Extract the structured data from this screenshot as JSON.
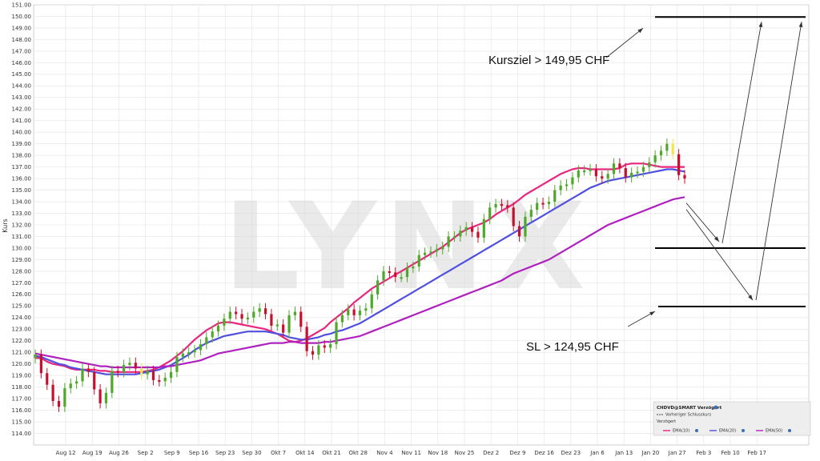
{
  "chart_data": {
    "type": "candlestick",
    "ylabel": "Kurs",
    "ylim": [
      113.0,
      151.0
    ],
    "yticks": [
      "114.00",
      "115.00",
      "116.00",
      "117.00",
      "118.00",
      "119.00",
      "120.00",
      "121.00",
      "122.00",
      "123.00",
      "124.00",
      "125.00",
      "126.00",
      "127.00",
      "128.00",
      "129.00",
      "130.00",
      "131.00",
      "132.00",
      "133.00",
      "134.00",
      "135.00",
      "136.00",
      "137.00",
      "138.00",
      "139.00",
      "140.00",
      "141.00",
      "142.00",
      "143.00",
      "144.00",
      "145.00",
      "146.00",
      "147.00",
      "148.00",
      "149.00",
      "150.00",
      "151.00"
    ],
    "xticks": [
      "Aug 12",
      "Aug 19",
      "Aug 26",
      "Sep 2",
      "Sep 9",
      "Sep 16",
      "Sep 23",
      "Sep 30",
      "Okt 7",
      "Okt 14",
      "Okt 21",
      "Okt 28",
      "Nov 4",
      "Nov 11",
      "Nov 18",
      "Nov 25",
      "Dez 2",
      "Dez 9",
      "Dez 16",
      "Dez 23",
      "Jan 6",
      "Jan 13",
      "Jan 20",
      "Jan 27",
      "Feb 3",
      "Feb 10",
      "Feb 17"
    ],
    "watermark": "LYNX",
    "closes": [
      120.8,
      119.2,
      118.2,
      116.8,
      116.3,
      117.9,
      118.3,
      118.5,
      119.6,
      119.3,
      117.8,
      116.6,
      117.5,
      119.4,
      119.3,
      119.9,
      120.1,
      119.6,
      119.1,
      119.4,
      118.6,
      118.5,
      118.8,
      119.3,
      120.6,
      120.9,
      121.0,
      121.2,
      121.7,
      122.3,
      122.8,
      123.3,
      123.9,
      124.5,
      124.3,
      123.9,
      124.0,
      124.5,
      124.8,
      124.3,
      123.3,
      123.4,
      122.7,
      124.2,
      124.5,
      123.2,
      121.1,
      120.8,
      121.6,
      121.4,
      121.7,
      123.6,
      124.2,
      124.7,
      124.2,
      124.6,
      124.8,
      126.0,
      127.2,
      128.0,
      127.9,
      127.5,
      127.5,
      128.3,
      128.4,
      129.4,
      129.6,
      129.7,
      129.9,
      130.1,
      131.0,
      131.0,
      131.5,
      131.8,
      131.4,
      130.9,
      132.5,
      133.5,
      133.8,
      133.7,
      133.5,
      131.9,
      131.0,
      132.7,
      133.3,
      133.9,
      133.8,
      134.0,
      135.0,
      135.4,
      135.5,
      136.1,
      136.7,
      136.7,
      136.8,
      136.2,
      136.0,
      136.4,
      137.3,
      136.9,
      136.1,
      136.5,
      136.6,
      137.0,
      137.4,
      138.0,
      138.4,
      139.0,
      138.1,
      136.3,
      136.0
    ],
    "series": [
      {
        "name": "EMA(10)",
        "color": "#e8267f",
        "values": [
          120.5,
          120.5,
          120.2,
          120.0,
          119.9,
          119.8,
          119.6,
          119.5,
          119.5,
          119.5,
          119.5,
          119.4,
          119.4,
          119.3,
          119.3,
          119.3,
          119.3,
          119.3,
          119.3,
          119.4,
          119.5,
          119.7,
          120.0,
          120.3,
          120.7,
          121.1,
          121.6,
          122.1,
          122.5,
          122.9,
          123.2,
          123.5,
          123.6,
          123.6,
          123.5,
          123.4,
          123.3,
          123.2,
          123.1,
          123.0,
          122.8,
          122.6,
          122.3,
          122.0,
          121.9,
          122.0,
          122.2,
          122.5,
          122.8,
          123.1,
          123.6,
          124.0,
          124.4,
          124.8,
          125.3,
          125.7,
          126.1,
          126.5,
          126.8,
          127.1,
          127.4,
          127.7,
          128.0,
          128.3,
          128.6,
          128.9,
          129.2,
          129.5,
          129.8,
          130.1,
          130.5,
          130.9,
          131.3,
          131.6,
          131.8,
          132.0,
          132.2,
          132.5,
          132.9,
          133.2,
          133.5,
          133.8,
          134.2,
          134.6,
          134.9,
          135.2,
          135.5,
          135.8,
          136.1,
          136.4,
          136.6,
          136.8,
          136.9,
          136.9,
          136.8,
          136.8,
          136.8,
          136.8,
          136.8,
          136.9,
          137.2,
          137.3,
          137.3,
          137.3,
          137.2,
          137.1,
          137.0,
          137.0,
          137.0,
          137.0,
          137.0
        ]
      },
      {
        "name": "EMA(20)",
        "color": "#5050e0",
        "values": [
          120.7,
          120.6,
          120.4,
          120.2,
          120.0,
          119.9,
          119.7,
          119.6,
          119.5,
          119.4,
          119.3,
          119.2,
          119.1,
          119.1,
          119.1,
          119.1,
          119.1,
          119.1,
          119.2,
          119.3,
          119.4,
          119.5,
          119.7,
          119.9,
          120.2,
          120.5,
          120.8,
          121.2,
          121.5,
          121.8,
          122.0,
          122.2,
          122.4,
          122.5,
          122.6,
          122.7,
          122.8,
          122.8,
          122.8,
          122.8,
          122.7,
          122.6,
          122.5,
          122.3,
          122.2,
          122.1,
          122.1,
          122.2,
          122.3,
          122.5,
          122.6,
          122.8,
          122.9,
          123.1,
          123.3,
          123.5,
          123.8,
          124.1,
          124.4,
          124.7,
          125.0,
          125.3,
          125.6,
          125.9,
          126.2,
          126.5,
          126.8,
          127.1,
          127.4,
          127.7,
          128.0,
          128.3,
          128.6,
          128.9,
          129.2,
          129.5,
          129.8,
          130.1,
          130.4,
          130.7,
          131.0,
          131.3,
          131.6,
          131.9,
          132.2,
          132.5,
          132.8,
          133.1,
          133.4,
          133.7,
          134.0,
          134.3,
          134.6,
          134.9,
          135.2,
          135.4,
          135.6,
          135.8,
          135.9,
          136.0,
          136.1,
          136.2,
          136.3,
          136.4,
          136.5,
          136.6,
          136.7,
          136.8,
          136.8,
          136.7,
          136.6
        ]
      },
      {
        "name": "EMA(50)",
        "color": "#b020c0",
        "values": [
          120.9,
          120.8,
          120.7,
          120.6,
          120.5,
          120.4,
          120.3,
          120.2,
          120.1,
          120.0,
          119.9,
          119.8,
          119.8,
          119.7,
          119.7,
          119.7,
          119.7,
          119.7,
          119.7,
          119.7,
          119.7,
          119.7,
          119.8,
          119.8,
          119.9,
          120.0,
          120.1,
          120.2,
          120.3,
          120.5,
          120.7,
          120.9,
          121.0,
          121.1,
          121.2,
          121.3,
          121.4,
          121.5,
          121.6,
          121.7,
          121.8,
          121.8,
          121.8,
          121.9,
          121.9,
          121.8,
          121.8,
          121.8,
          121.8,
          121.9,
          121.9,
          122.0,
          122.1,
          122.2,
          122.3,
          122.4,
          122.6,
          122.8,
          123.0,
          123.2,
          123.4,
          123.6,
          123.8,
          124.0,
          124.2,
          124.4,
          124.6,
          124.8,
          125.0,
          125.2,
          125.4,
          125.6,
          125.8,
          126.0,
          126.2,
          126.4,
          126.6,
          126.8,
          127.0,
          127.2,
          127.5,
          127.8,
          128.0,
          128.2,
          128.4,
          128.6,
          128.8,
          129.0,
          129.3,
          129.6,
          129.9,
          130.2,
          130.5,
          130.8,
          131.1,
          131.4,
          131.7,
          132.0,
          132.2,
          132.4,
          132.6,
          132.8,
          133.0,
          133.2,
          133.4,
          133.6,
          133.8,
          134.0,
          134.2,
          134.3,
          134.4
        ]
      }
    ],
    "annotations": [
      {
        "text": "Kursziel > 149,95 CHF"
      },
      {
        "text": "SL > 124,95 CHF"
      }
    ],
    "legend": {
      "position": "bottom-right",
      "title": "CHDVD@SMART Verzögert",
      "line1": "Vorheriger Schlusskurs",
      "line2": "Verzögert",
      "items": [
        "EMA(10)",
        "EMA(20)",
        "EMA(50)"
      ]
    }
  }
}
